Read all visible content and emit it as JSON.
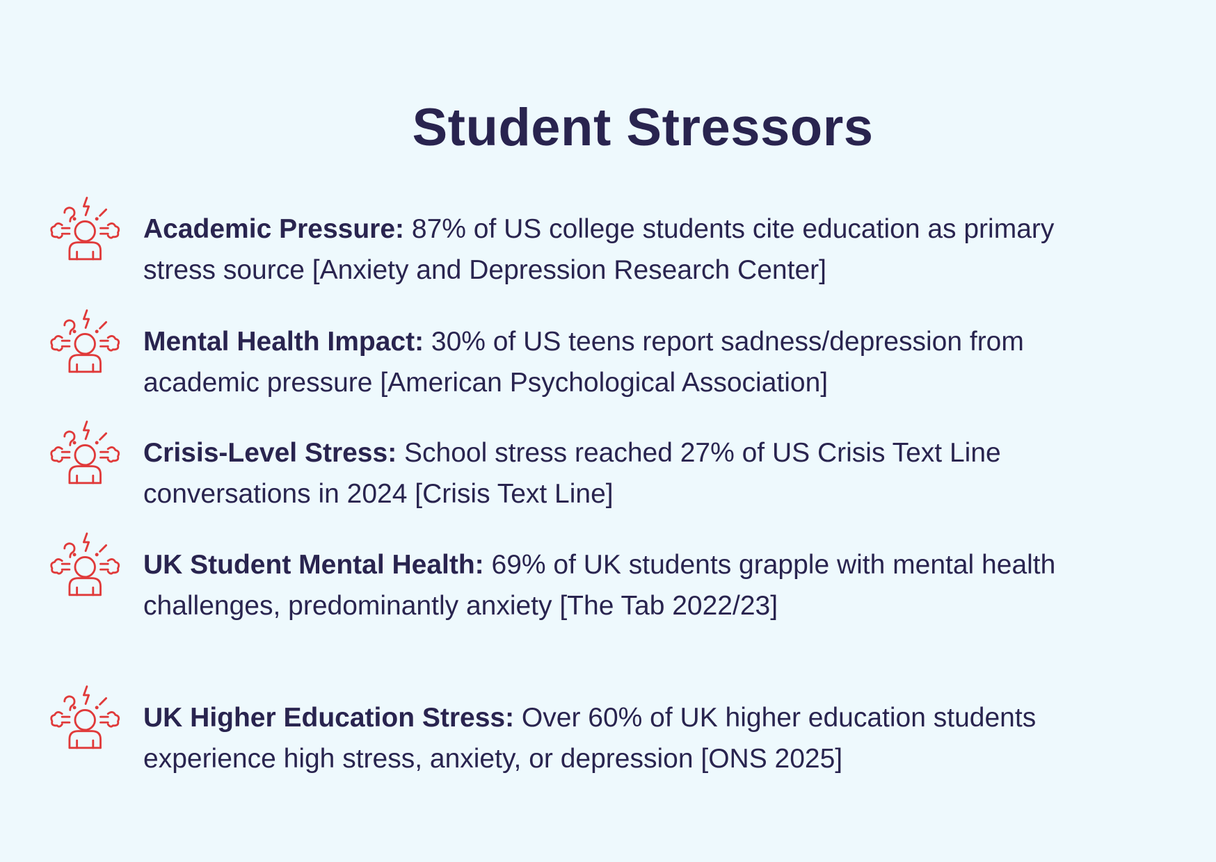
{
  "title": "Student Stressors",
  "accent_color": "#e03a3a",
  "text_color": "#29244f",
  "background_color": "#eef9fd",
  "items": [
    {
      "icon": "stressed-person-icon",
      "label": "Academic Pressure:",
      "text": " 87% of US college students cite education as primary stress source [Anxiety and Depression Research Center]"
    },
    {
      "icon": "stressed-person-icon",
      "label": "Mental Health Impact:",
      "text": " 30% of US teens report sadness/depression from academic pressure [American Psychological Association]"
    },
    {
      "icon": "stressed-person-icon",
      "label": "Crisis-Level Stress:",
      "text": " School stress reached 27% of US Crisis Text Line conversations in 2024 [Crisis Text Line]"
    },
    {
      "icon": "stressed-person-icon",
      "label": "UK Student Mental Health:",
      "text": " 69% of UK students grapple with mental health challenges, predominantly anxiety [The Tab 2022/23]"
    },
    {
      "icon": "stressed-person-icon",
      "label": "UK Higher Education Stress:",
      "text": " Over 60% of UK higher education students experience high stress, anxiety, or depression [ONS 2025]"
    }
  ]
}
